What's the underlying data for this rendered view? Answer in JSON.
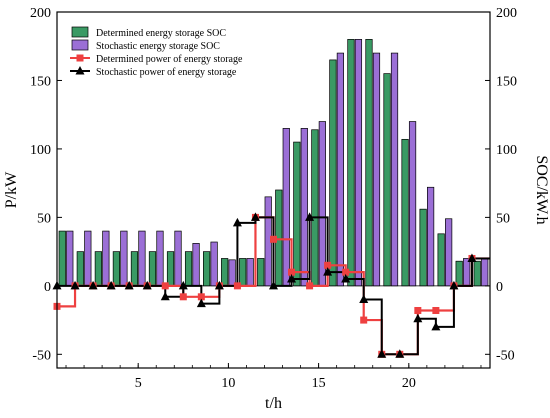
{
  "chart_data": {
    "type": "bar",
    "xlabel": "t/h",
    "ylabel_left": "P/kW",
    "ylabel_right": "SOC/kW.h",
    "xlim": [
      0.5,
      24.5
    ],
    "ylim": [
      -60,
      200
    ],
    "xticks": [
      5,
      10,
      15,
      20
    ],
    "yticks": [
      -50,
      0,
      50,
      100,
      150,
      200
    ],
    "legend_position": "top-left",
    "x": [
      1,
      2,
      3,
      4,
      5,
      6,
      7,
      8,
      9,
      10,
      11,
      12,
      13,
      14,
      15,
      16,
      17,
      18,
      19,
      20,
      21,
      22,
      23,
      24
    ],
    "series": [
      {
        "name": "Determined energy storage SOC",
        "kind": "bar",
        "color": "#3a9a64",
        "values": [
          40,
          25,
          25,
          25,
          25,
          25,
          25,
          25,
          25,
          20,
          20,
          20,
          70,
          105,
          114,
          165,
          180,
          180,
          155,
          107,
          56,
          38,
          18,
          18
        ]
      },
      {
        "name": "Stochastic energy storage SOC",
        "kind": "bar",
        "color": "#9b6fd6",
        "values": [
          40,
          40,
          40,
          40,
          40,
          40,
          40,
          31,
          32,
          19,
          20,
          65,
          115,
          115,
          120,
          170,
          180,
          170,
          170,
          120,
          72,
          49,
          20,
          20
        ]
      },
      {
        "name": "Determined power of energy storage",
        "kind": "step",
        "marker": "square",
        "color": "#ee4040",
        "values": [
          -15,
          0,
          0,
          0,
          0,
          0,
          0,
          -8,
          -8,
          0,
          0,
          50,
          34,
          10,
          0,
          15,
          10,
          -25,
          -50,
          -50,
          -18,
          -18,
          0,
          20
        ]
      },
      {
        "name": "Stochastic power of energy storage",
        "kind": "step",
        "marker": "triangle",
        "color": "#000000",
        "values": [
          0,
          0,
          0,
          0,
          0,
          0,
          -8,
          0,
          -13,
          0,
          46,
          50,
          0,
          5,
          50,
          10,
          5,
          -10,
          -50,
          -50,
          -24,
          -30,
          0,
          20
        ]
      }
    ]
  }
}
